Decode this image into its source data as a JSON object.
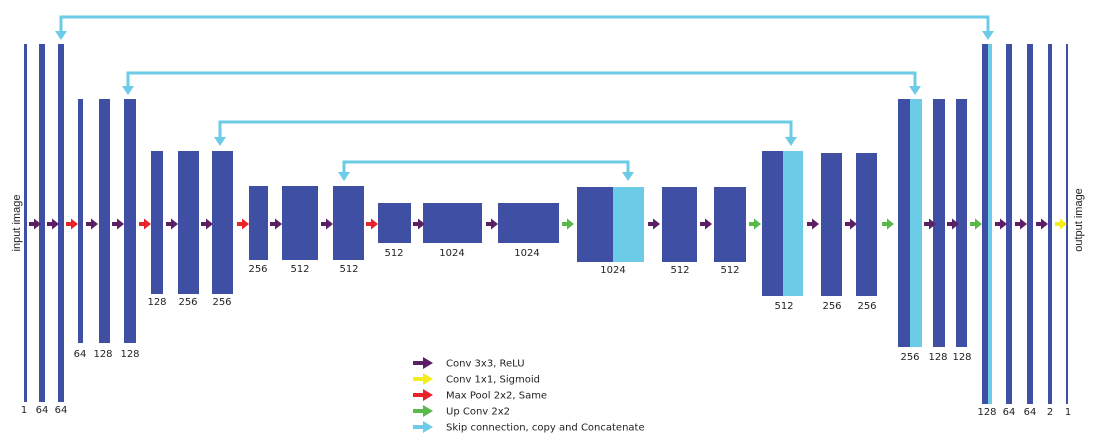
{
  "labels": {
    "input": "input image",
    "output": "output image"
  },
  "colors": {
    "block": "#3f4fa3",
    "skip_block": "#6ccbe6",
    "conv": "#5b1f63",
    "sigmoid": "#f3ec1e",
    "maxpool": "#e8242a",
    "upconv": "#5bb94a",
    "skip": "#6ccbe6"
  },
  "legend": [
    {
      "color_key": "conv",
      "text": "Conv 3x3, ReLU"
    },
    {
      "color_key": "sigmoid",
      "text": "Conv 1x1, Sigmoid"
    },
    {
      "color_key": "maxpool",
      "text": "Max Pool 2x2, Same"
    },
    {
      "color_key": "upconv",
      "text": "Up  Conv 2x2"
    },
    {
      "color_key": "skip",
      "text": "Skip connection, copy and Concatenate"
    }
  ],
  "channel_labels": [
    "1",
    "64",
    "64",
    "64",
    "128",
    "128",
    "128",
    "256",
    "256",
    "256",
    "512",
    "512",
    "512",
    "1024",
    "1024",
    "1024",
    "512",
    "512",
    "512",
    "256",
    "256",
    "256",
    "128",
    "128",
    "128",
    "64",
    "64",
    "2",
    "1"
  ]
}
